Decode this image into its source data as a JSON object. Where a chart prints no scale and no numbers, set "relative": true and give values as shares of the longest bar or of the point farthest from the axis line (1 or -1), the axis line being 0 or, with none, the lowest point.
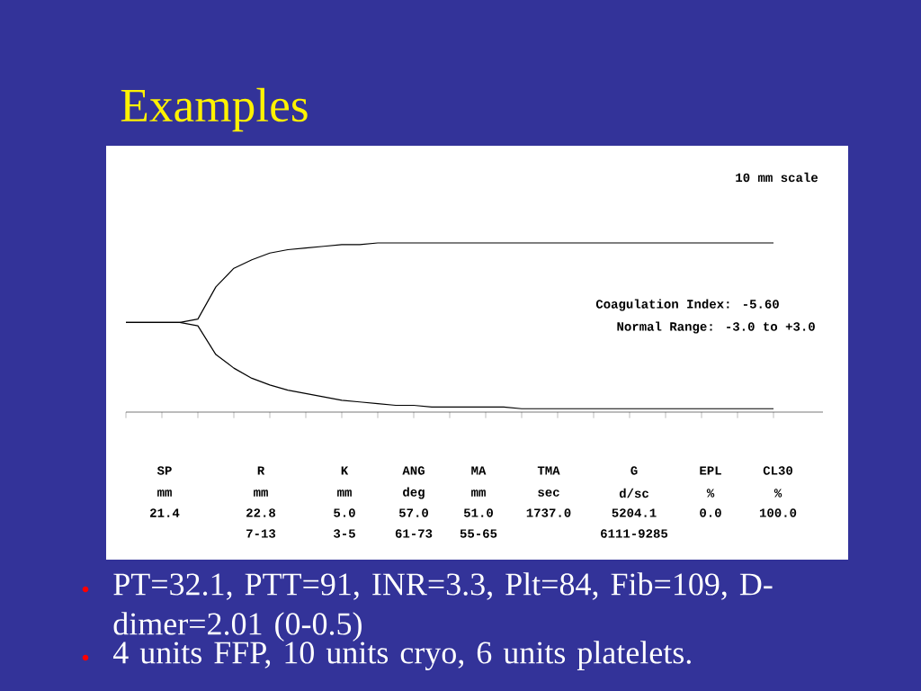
{
  "chart_data": {
    "type": "line",
    "title": "Examples",
    "relative": true,
    "tick_labels": false,
    "categories": [
      null,
      null,
      null,
      null,
      null,
      null,
      null,
      null,
      null,
      null,
      null,
      null,
      null,
      null,
      null,
      null,
      null,
      null,
      null,
      null,
      null,
      null,
      null,
      null,
      null,
      null,
      null,
      null,
      null,
      null,
      null,
      null,
      null,
      null,
      null,
      null,
      null
    ],
    "series": [
      {
        "color": "#000000",
        "values": [
          0.53,
          0.53,
          0.53,
          0.53,
          0.55,
          0.74,
          0.85,
          0.9,
          0.94,
          0.96,
          0.97,
          0.98,
          0.99,
          0.99,
          1,
          1,
          1,
          1,
          1,
          1,
          1,
          1,
          1,
          1,
          1,
          1,
          1,
          1,
          1,
          1,
          1,
          1,
          1,
          1,
          1,
          1,
          1
        ]
      },
      {
        "color": "#000000",
        "values": [
          0.53,
          0.53,
          0.53,
          0.53,
          0.51,
          0.34,
          0.26,
          0.2,
          0.16,
          0.13,
          0.11,
          0.09,
          0.07,
          0.06,
          0.05,
          0.04,
          0.04,
          0.03,
          0.03,
          0.03,
          0.03,
          0.03,
          0.02,
          0.02,
          0.02,
          0.02,
          0.02,
          0.02,
          0.02,
          0.02,
          0.02,
          0.02,
          0.02,
          0.02,
          0.02,
          0.02,
          0.02
        ]
      }
    ],
    "annotations": [
      "10 mm scale",
      "Coagulation Index:   -5.60",
      "Normal Range: -3.0 to +3.0",
      "SP",
      "R",
      "K",
      "ANG",
      "MA",
      "TMA",
      "G",
      "EPL",
      "CL30",
      "mm",
      "mm",
      "mm",
      "deg",
      "mm",
      "sec",
      "d/sc",
      "%",
      "%",
      "21.4",
      "22.8",
      "5.0",
      "57.0",
      "51.0",
      "1737.0",
      "5204.1",
      "0.0",
      "100.0",
      "7-13",
      "3-5",
      "61-73",
      "55-65",
      "6111-9285",
      "PT=32.1, PTT=91, INR=3.3, Plt=84, Fib=109, D-dimer=2.01 (0-0.5)",
      "4 units FFP, 10 units cryo, 6 units platelets."
    ]
  }
}
